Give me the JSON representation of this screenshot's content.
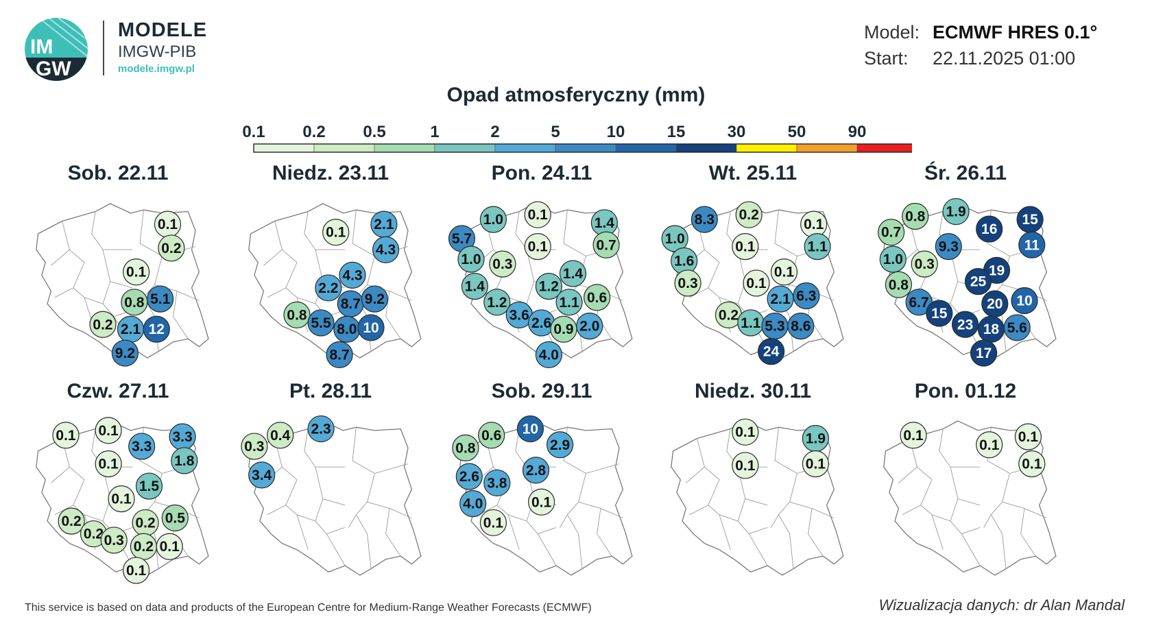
{
  "header": {
    "brand_title": "MODELE",
    "brand_subtitle": "IMGW-PIB",
    "brand_url": "modele.imgw.pl",
    "logo_text_top": "IM",
    "logo_text_bottom": "GW",
    "model_label": "Model:",
    "model_value": "ECMWF HRES 0.1°",
    "start_label": "Start:",
    "start_value": "22.11.2025 01:00"
  },
  "title": "Opad atmosferyczny (mm)",
  "legend": {
    "ticks": [
      "0.1",
      "0.2",
      "0.5",
      "1",
      "2",
      "5",
      "10",
      "15",
      "30",
      "50",
      "90"
    ],
    "colors": [
      "#e4f4dd",
      "#cdebc4",
      "#a6dcb2",
      "#79c7c0",
      "#54aad6",
      "#3b8ac4",
      "#2266a9",
      "#14427d",
      "#ffee00",
      "#f5a02a",
      "#e81f1f"
    ]
  },
  "footer": {
    "left": "This service is based on data and products of the European Centre for Medium-Range Weather Forecasts (ECMWF)",
    "right": "Wizualizacja danych: dr Alan Mandal"
  },
  "days": [
    {
      "label": "Sob. 22.11",
      "markers": [
        {
          "v": "0.1",
          "x": 0.75,
          "y": 0.16
        },
        {
          "v": "0.2",
          "x": 0.77,
          "y": 0.31
        },
        {
          "v": "0.1",
          "x": 0.58,
          "y": 0.46
        },
        {
          "v": "0.8",
          "x": 0.57,
          "y": 0.65
        },
        {
          "v": "5.1",
          "x": 0.71,
          "y": 0.63
        },
        {
          "v": "0.2",
          "x": 0.4,
          "y": 0.79
        },
        {
          "v": "2.1",
          "x": 0.55,
          "y": 0.82
        },
        {
          "v": "12",
          "x": 0.69,
          "y": 0.82
        },
        {
          "v": "9.2",
          "x": 0.52,
          "y": 0.97
        }
      ]
    },
    {
      "label": "Niedz. 23.11",
      "markers": [
        {
          "v": "2.1",
          "x": 0.77,
          "y": 0.16
        },
        {
          "v": "0.1",
          "x": 0.51,
          "y": 0.21
        },
        {
          "v": "4.3",
          "x": 0.78,
          "y": 0.32
        },
        {
          "v": "4.3",
          "x": 0.6,
          "y": 0.48
        },
        {
          "v": "2.2",
          "x": 0.47,
          "y": 0.56
        },
        {
          "v": "8.7",
          "x": 0.59,
          "y": 0.66
        },
        {
          "v": "9.2",
          "x": 0.72,
          "y": 0.63
        },
        {
          "v": "0.8",
          "x": 0.3,
          "y": 0.73
        },
        {
          "v": "5.5",
          "x": 0.43,
          "y": 0.78
        },
        {
          "v": "8.0",
          "x": 0.57,
          "y": 0.82
        },
        {
          "v": "10",
          "x": 0.7,
          "y": 0.81
        },
        {
          "v": "8.7",
          "x": 0.53,
          "y": 0.98
        }
      ]
    },
    {
      "label": "Pon. 24.11",
      "markers": [
        {
          "v": "1.0",
          "x": 0.22,
          "y": 0.13
        },
        {
          "v": "0.1",
          "x": 0.46,
          "y": 0.1
        },
        {
          "v": "1.4",
          "x": 0.82,
          "y": 0.15
        },
        {
          "v": "5.7",
          "x": 0.05,
          "y": 0.25
        },
        {
          "v": "0.1",
          "x": 0.46,
          "y": 0.3
        },
        {
          "v": "0.7",
          "x": 0.83,
          "y": 0.29
        },
        {
          "v": "1.0",
          "x": 0.1,
          "y": 0.38
        },
        {
          "v": "0.3",
          "x": 0.27,
          "y": 0.41
        },
        {
          "v": "1.4",
          "x": 0.65,
          "y": 0.47
        },
        {
          "v": "1.4",
          "x": 0.12,
          "y": 0.55
        },
        {
          "v": "1.2",
          "x": 0.52,
          "y": 0.55
        },
        {
          "v": "1.2",
          "x": 0.24,
          "y": 0.65
        },
        {
          "v": "1.1",
          "x": 0.63,
          "y": 0.65
        },
        {
          "v": "0.6",
          "x": 0.78,
          "y": 0.62
        },
        {
          "v": "3.6",
          "x": 0.36,
          "y": 0.73
        },
        {
          "v": "2.6",
          "x": 0.48,
          "y": 0.78
        },
        {
          "v": "0.9",
          "x": 0.6,
          "y": 0.82
        },
        {
          "v": "2.0",
          "x": 0.74,
          "y": 0.8
        },
        {
          "v": "4.0",
          "x": 0.52,
          "y": 0.98
        }
      ]
    },
    {
      "label": "Wt. 25.11",
      "markers": [
        {
          "v": "8.3",
          "x": 0.22,
          "y": 0.13
        },
        {
          "v": "0.2",
          "x": 0.46,
          "y": 0.1
        },
        {
          "v": "0.1",
          "x": 0.81,
          "y": 0.16
        },
        {
          "v": "1.0",
          "x": 0.06,
          "y": 0.25
        },
        {
          "v": "0.1",
          "x": 0.44,
          "y": 0.3
        },
        {
          "v": "1.1",
          "x": 0.83,
          "y": 0.3
        },
        {
          "v": "1.6",
          "x": 0.11,
          "y": 0.39
        },
        {
          "v": "0.1",
          "x": 0.65,
          "y": 0.46
        },
        {
          "v": "0.3",
          "x": 0.13,
          "y": 0.53
        },
        {
          "v": "0.1",
          "x": 0.5,
          "y": 0.53
        },
        {
          "v": "2.1",
          "x": 0.63,
          "y": 0.63
        },
        {
          "v": "6.3",
          "x": 0.77,
          "y": 0.61
        },
        {
          "v": "0.2",
          "x": 0.35,
          "y": 0.73
        },
        {
          "v": "1.1",
          "x": 0.47,
          "y": 0.78
        },
        {
          "v": "5.3",
          "x": 0.6,
          "y": 0.8
        },
        {
          "v": "8.6",
          "x": 0.74,
          "y": 0.8
        },
        {
          "v": "24",
          "x": 0.58,
          "y": 0.96
        }
      ]
    },
    {
      "label": "Śr. 26.11",
      "markers": [
        {
          "v": "0.8",
          "x": 0.21,
          "y": 0.11
        },
        {
          "v": "1.9",
          "x": 0.43,
          "y": 0.08
        },
        {
          "v": "15",
          "x": 0.83,
          "y": 0.13
        },
        {
          "v": "0.7",
          "x": 0.08,
          "y": 0.21
        },
        {
          "v": "16",
          "x": 0.61,
          "y": 0.19
        },
        {
          "v": "9.3",
          "x": 0.39,
          "y": 0.3
        },
        {
          "v": "11",
          "x": 0.84,
          "y": 0.29
        },
        {
          "v": "1.0",
          "x": 0.09,
          "y": 0.38
        },
        {
          "v": "0.3",
          "x": 0.26,
          "y": 0.41
        },
        {
          "v": "19",
          "x": 0.65,
          "y": 0.45
        },
        {
          "v": "0.8",
          "x": 0.12,
          "y": 0.54
        },
        {
          "v": "25",
          "x": 0.55,
          "y": 0.52
        },
        {
          "v": "6.7",
          "x": 0.23,
          "y": 0.65
        },
        {
          "v": "20",
          "x": 0.64,
          "y": 0.66
        },
        {
          "v": "10",
          "x": 0.8,
          "y": 0.64
        },
        {
          "v": "15",
          "x": 0.34,
          "y": 0.72
        },
        {
          "v": "23",
          "x": 0.48,
          "y": 0.79
        },
        {
          "v": "18",
          "x": 0.62,
          "y": 0.82
        },
        {
          "v": "5.6",
          "x": 0.76,
          "y": 0.81
        },
        {
          "v": "17",
          "x": 0.58,
          "y": 0.97
        }
      ]
    },
    {
      "label": "Czw. 27.11",
      "markers": [
        {
          "v": "0.1",
          "x": 0.2,
          "y": 0.12
        },
        {
          "v": "0.1",
          "x": 0.43,
          "y": 0.09
        },
        {
          "v": "3.3",
          "x": 0.61,
          "y": 0.19
        },
        {
          "v": "3.3",
          "x": 0.83,
          "y": 0.13
        },
        {
          "v": "0.1",
          "x": 0.43,
          "y": 0.3
        },
        {
          "v": "1.8",
          "x": 0.84,
          "y": 0.28
        },
        {
          "v": "1.5",
          "x": 0.65,
          "y": 0.44
        },
        {
          "v": "0.1",
          "x": 0.5,
          "y": 0.52
        },
        {
          "v": "0.2",
          "x": 0.23,
          "y": 0.66
        },
        {
          "v": "0.2",
          "x": 0.63,
          "y": 0.67
        },
        {
          "v": "0.5",
          "x": 0.79,
          "y": 0.64
        },
        {
          "v": "0.2",
          "x": 0.35,
          "y": 0.74
        },
        {
          "v": "0.3",
          "x": 0.46,
          "y": 0.78
        },
        {
          "v": "0.2",
          "x": 0.62,
          "y": 0.82
        },
        {
          "v": "0.1",
          "x": 0.76,
          "y": 0.82
        },
        {
          "v": "0.1",
          "x": 0.58,
          "y": 0.97
        }
      ]
    },
    {
      "label": "Pt. 28.11",
      "markers": [
        {
          "v": "0.4",
          "x": 0.21,
          "y": 0.12
        },
        {
          "v": "2.3",
          "x": 0.43,
          "y": 0.08
        },
        {
          "v": "0.3",
          "x": 0.07,
          "y": 0.19
        },
        {
          "v": "3.4",
          "x": 0.11,
          "y": 0.37
        }
      ]
    },
    {
      "label": "Sob. 29.11",
      "markers": [
        {
          "v": "0.6",
          "x": 0.21,
          "y": 0.12
        },
        {
          "v": "10",
          "x": 0.42,
          "y": 0.08
        },
        {
          "v": "0.8",
          "x": 0.07,
          "y": 0.2
        },
        {
          "v": "2.9",
          "x": 0.58,
          "y": 0.18
        },
        {
          "v": "2.8",
          "x": 0.45,
          "y": 0.34
        },
        {
          "v": "2.6",
          "x": 0.09,
          "y": 0.38
        },
        {
          "v": "3.8",
          "x": 0.24,
          "y": 0.42
        },
        {
          "v": "4.0",
          "x": 0.11,
          "y": 0.55
        },
        {
          "v": "0.1",
          "x": 0.48,
          "y": 0.54
        },
        {
          "v": "0.1",
          "x": 0.22,
          "y": 0.67
        }
      ]
    },
    {
      "label": "Niedz. 30.11",
      "markers": [
        {
          "v": "0.1",
          "x": 0.44,
          "y": 0.1
        },
        {
          "v": "1.9",
          "x": 0.82,
          "y": 0.14
        },
        {
          "v": "0.1",
          "x": 0.44,
          "y": 0.31
        },
        {
          "v": "0.1",
          "x": 0.82,
          "y": 0.3
        }
      ]
    },
    {
      "label": "Pon. 01.12",
      "markers": [
        {
          "v": "0.1",
          "x": 0.2,
          "y": 0.12
        },
        {
          "v": "0.1",
          "x": 0.61,
          "y": 0.18
        },
        {
          "v": "0.1",
          "x": 0.82,
          "y": 0.13
        },
        {
          "v": "0.1",
          "x": 0.84,
          "y": 0.3
        }
      ]
    }
  ]
}
